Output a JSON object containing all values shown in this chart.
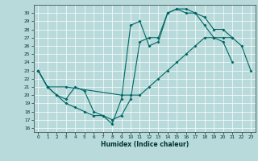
{
  "xlabel": "Humidex (Indice chaleur)",
  "background_color": "#b8dada",
  "line_color": "#006666",
  "xlim": [
    -0.5,
    23.5
  ],
  "ylim": [
    15.5,
    31.0
  ],
  "xticks": [
    0,
    1,
    2,
    3,
    4,
    5,
    6,
    7,
    8,
    9,
    10,
    11,
    12,
    13,
    14,
    15,
    16,
    17,
    18,
    19,
    20,
    21,
    22,
    23
  ],
  "yticks": [
    16,
    17,
    18,
    19,
    20,
    21,
    22,
    23,
    24,
    25,
    26,
    27,
    28,
    29,
    30
  ],
  "line1_x": [
    0,
    1,
    2,
    3,
    4,
    5,
    6,
    7,
    8,
    9,
    10,
    11,
    12,
    13,
    14,
    15,
    16,
    17,
    18,
    19,
    20,
    21
  ],
  "line1_y": [
    23,
    21,
    20,
    19,
    18.5,
    18,
    17.5,
    17.5,
    16.5,
    19.5,
    28.5,
    29,
    26,
    26.5,
    30,
    30.5,
    30.5,
    30,
    29.5,
    28,
    28,
    27
  ],
  "line2_x": [
    0,
    1,
    3,
    9,
    10,
    11,
    12,
    13,
    14,
    15,
    16,
    17,
    18,
    19,
    20,
    21,
    22,
    23
  ],
  "line2_y": [
    23,
    21,
    21,
    20,
    20,
    20,
    21,
    22,
    23,
    24,
    25,
    26,
    27,
    27,
    27,
    27,
    26,
    23
  ],
  "line3_x": [
    0,
    1,
    2,
    3,
    4,
    5,
    6,
    7,
    8,
    9,
    10,
    11,
    12,
    13,
    14,
    15,
    16,
    17,
    18,
    19,
    20,
    21
  ],
  "line3_y": [
    23,
    21,
    20,
    19.5,
    21,
    20.5,
    18,
    17.5,
    17,
    17.5,
    19.5,
    26.5,
    27,
    27,
    30,
    30.5,
    30,
    30,
    28.5,
    27,
    26.5,
    24
  ]
}
